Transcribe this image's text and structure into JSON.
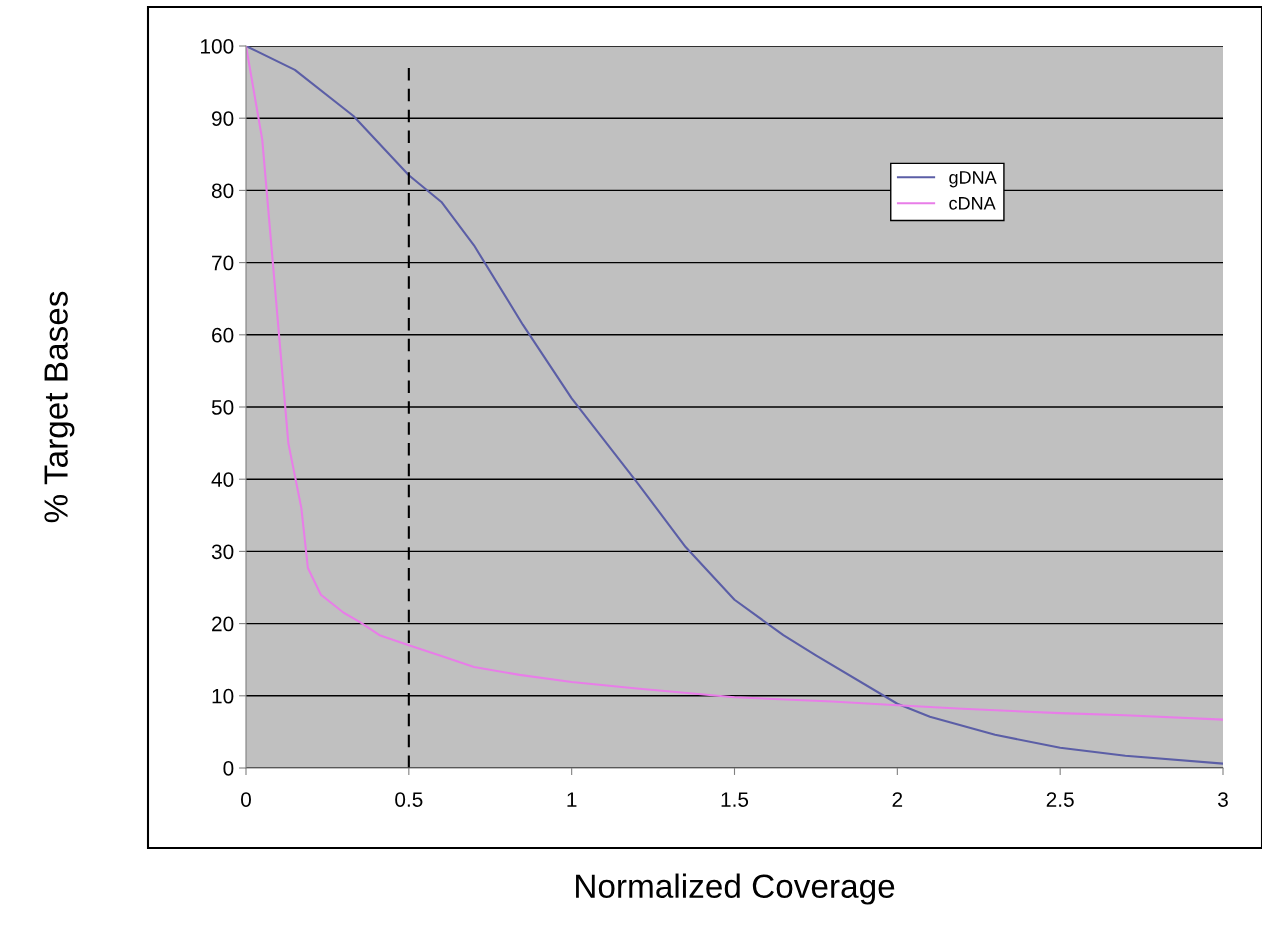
{
  "chart_data": {
    "type": "line",
    "xlabel": "Normalized Coverage",
    "ylabel": "% Target Bases",
    "xlim": [
      0,
      3
    ],
    "ylim": [
      0,
      100
    ],
    "xticks": [
      0,
      0.5,
      1,
      1.5,
      2,
      2.5,
      3
    ],
    "yticks": [
      0,
      10,
      20,
      30,
      40,
      50,
      60,
      70,
      80,
      90,
      100
    ],
    "grid": "y",
    "legend": "top right",
    "line_style": "solid",
    "marker": "none",
    "ref_lines": [
      {
        "axis": "x",
        "value": 0.5,
        "color": "#000000",
        "line_style": "dashed"
      }
    ],
    "series": [
      {
        "name": "gDNA",
        "color": "#5b5ea6",
        "x": [
          0,
          0.15,
          0.33,
          0.5,
          0.6,
          0.7,
          0.85,
          1,
          1.2,
          1.35,
          1.5,
          1.65,
          1.75,
          2,
          2.1,
          2.3,
          2.5,
          2.7,
          3
        ],
        "values": [
          100,
          96.7,
          90.3,
          82.1,
          78.4,
          72.4,
          61.4,
          51.2,
          39.6,
          30.6,
          23.3,
          18.4,
          15.6,
          8.9,
          7.1,
          4.6,
          2.8,
          1.7,
          0.6
        ]
      },
      {
        "name": "cDNA",
        "color": "#e87de8",
        "x": [
          0,
          0.05,
          0.13,
          0.17,
          0.19,
          0.23,
          0.3,
          0.35,
          0.41,
          0.5,
          0.6,
          0.7,
          0.84,
          1,
          1.2,
          1.5,
          1.8,
          2,
          2.2,
          2.5,
          2.7,
          3
        ],
        "values": [
          100,
          87,
          45,
          36,
          27.7,
          24,
          21.5,
          20.2,
          18.4,
          17,
          15.5,
          14,
          12.9,
          11.9,
          11,
          9.8,
          9.2,
          8.7,
          8.2,
          7.6,
          7.3,
          6.7
        ]
      }
    ]
  }
}
